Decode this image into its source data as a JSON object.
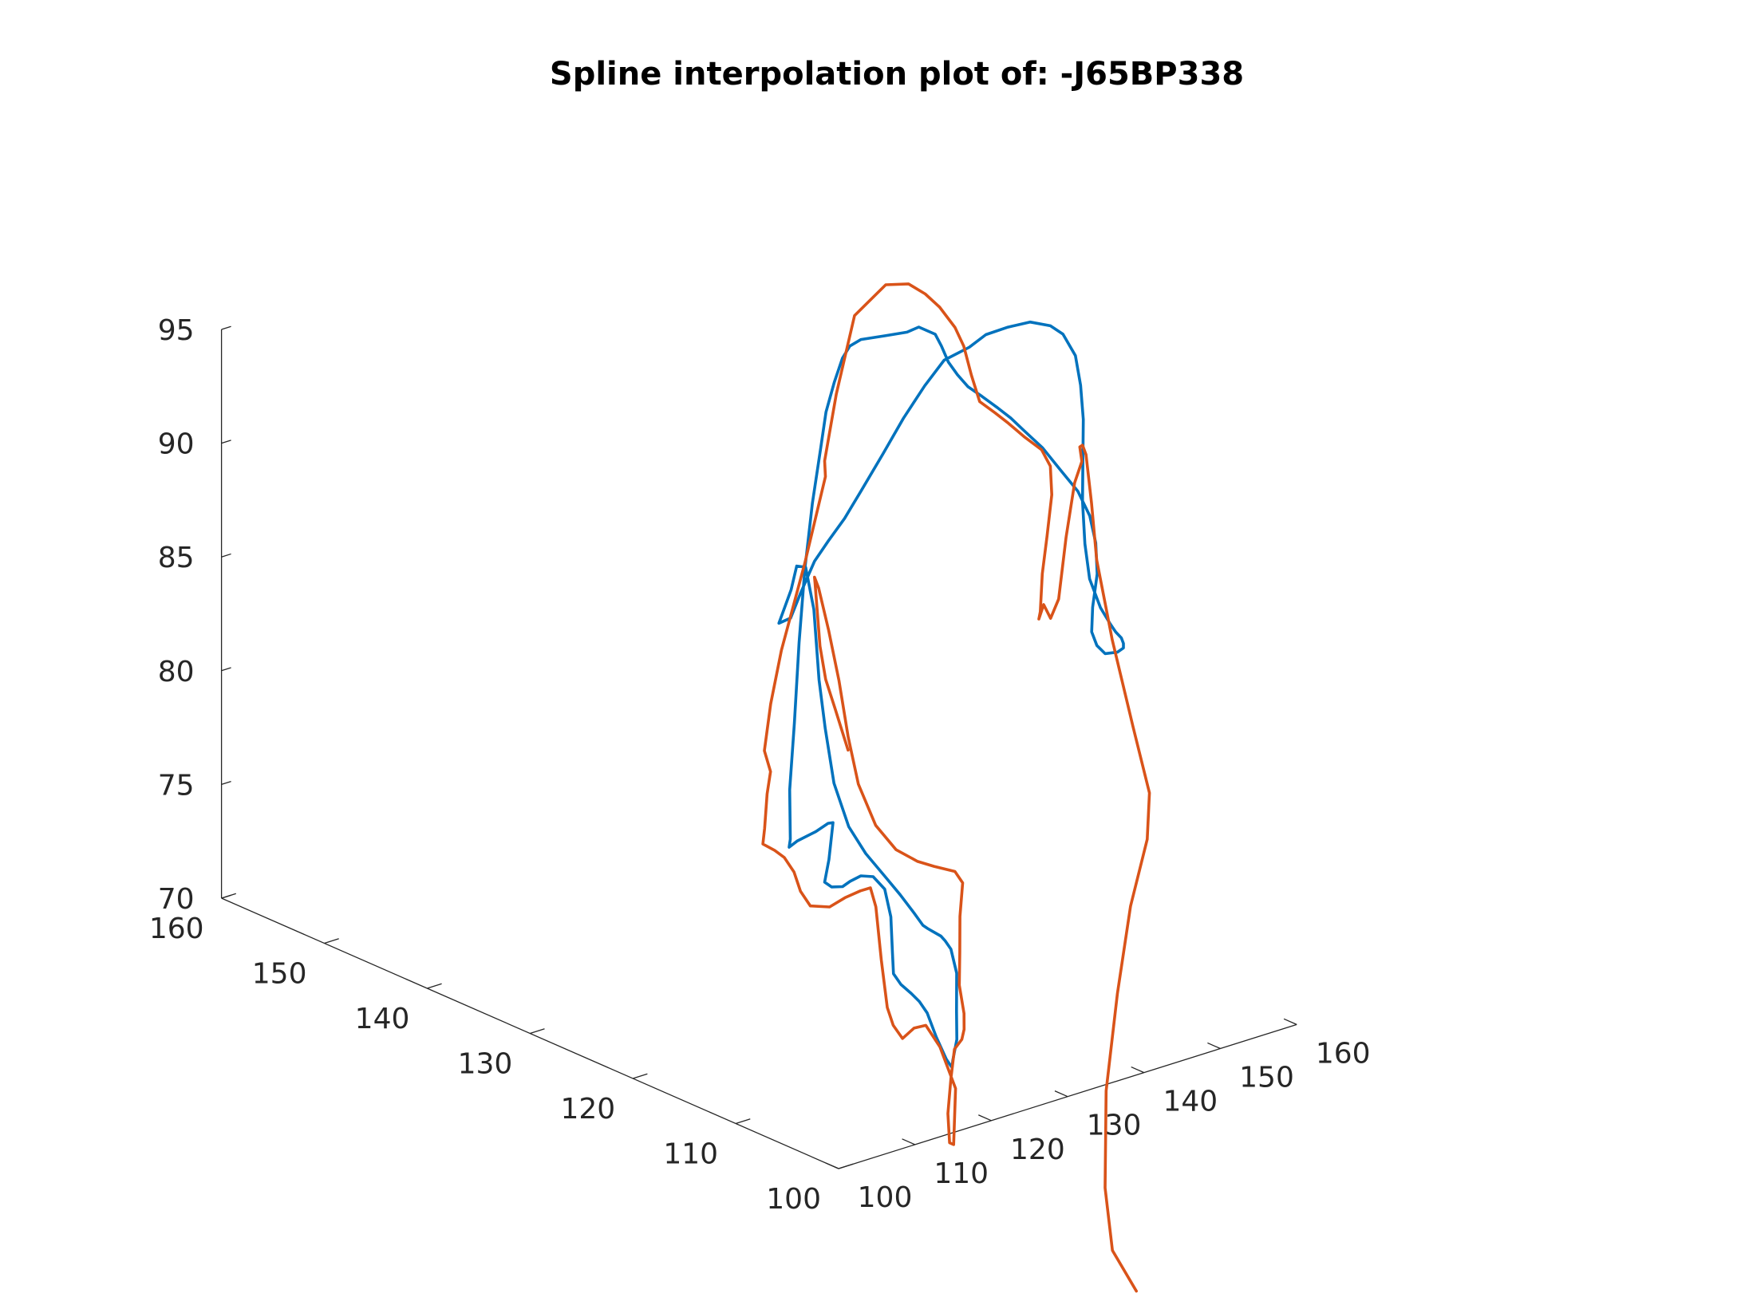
{
  "title": "Spline interpolation plot of: -J65BP338",
  "chart_data": {
    "type": "line",
    "dimension": "3d",
    "title": "Spline interpolation plot of: -J65BP338",
    "xlabel": "",
    "ylabel": "",
    "zlabel": "",
    "xlim": [
      100,
      160
    ],
    "ylim": [
      100,
      160
    ],
    "zlim": [
      70,
      95
    ],
    "x_ticks": [
      "100",
      "110",
      "120",
      "130",
      "140",
      "150",
      "160"
    ],
    "y_ticks": [
      "100",
      "110",
      "120",
      "130",
      "140",
      "150",
      "160"
    ],
    "z_ticks": [
      "70",
      "75",
      "80",
      "85",
      "90",
      "95"
    ],
    "grid": false,
    "legend": "none",
    "colors": [
      "#0072BD",
      "#D95319"
    ],
    "series": [
      {
        "color": "#0072BD",
        "points": [
          [
            136.9,
            133.2,
            83.5
          ],
          [
            138.5,
            133.2,
            84.8
          ],
          [
            139.5,
            133.4,
            85.7
          ],
          [
            140.0,
            132.9,
            85.7
          ],
          [
            140.0,
            132.1,
            84.0
          ],
          [
            140.0,
            131.6,
            81.0
          ],
          [
            140.0,
            131.0,
            79.0
          ],
          [
            139.4,
            129.7,
            76.9
          ],
          [
            138.5,
            127.6,
            75.5
          ],
          [
            137.9,
            125.5,
            74.8
          ],
          [
            137.6,
            123.3,
            74.2
          ],
          [
            137.3,
            121.7,
            73.8
          ],
          [
            136.8,
            120.0,
            73.4
          ],
          [
            136.1,
            118.6,
            73.2
          ],
          [
            135.5,
            117.7,
            73.3
          ],
          [
            134.6,
            116.6,
            73.5
          ],
          [
            134.0,
            115.3,
            73.6
          ],
          [
            133.5,
            114.5,
            73.6
          ],
          [
            132.9,
            113.5,
            73.5
          ],
          [
            132.3,
            112.5,
            72.7
          ],
          [
            131.2,
            111.7,
            71.3
          ],
          [
            130.3,
            111.0,
            70.3
          ],
          [
            129.1,
            110.5,
            69.6
          ],
          [
            128.6,
            110.2,
            69.4
          ],
          [
            128.4,
            110.6,
            69.7
          ],
          [
            128.4,
            111.6,
            70.5
          ],
          [
            128.3,
            112.4,
            71.4
          ],
          [
            128.1,
            113.0,
            71.8
          ],
          [
            128.1,
            113.8,
            72.0
          ],
          [
            128.1,
            114.8,
            72.2
          ],
          [
            128.2,
            115.6,
            72.5
          ],
          [
            128.2,
            115.7,
            73.4
          ],
          [
            128.4,
            116.0,
            74.9
          ],
          [
            128.4,
            116.6,
            76.0
          ],
          [
            128.1,
            117.5,
            76.4
          ],
          [
            127.7,
            118.4,
            76.3
          ],
          [
            127.5,
            119.3,
            75.9
          ],
          [
            127.6,
            120.1,
            75.5
          ],
          [
            127.5,
            121.1,
            75.3
          ],
          [
            127.4,
            121.7,
            75.4
          ],
          [
            128.1,
            121.8,
            76.3
          ],
          [
            128.9,
            122.0,
            77.8
          ],
          [
            128.8,
            122.4,
            77.7
          ],
          [
            128.4,
            123.3,
            77.2
          ],
          [
            128.1,
            124.9,
            76.5
          ],
          [
            128.0,
            125.6,
            76.1
          ],
          [
            128.7,
            126.0,
            76.3
          ],
          [
            130.5,
            127.4,
            78.0
          ],
          [
            132.6,
            128.5,
            80.5
          ],
          [
            134.7,
            129.6,
            83.6
          ],
          [
            136.8,
            130.6,
            86.4
          ],
          [
            139.0,
            131.5,
            88.9
          ],
          [
            141.3,
            132.4,
            90.9
          ],
          [
            142.8,
            133.0,
            92.2
          ],
          [
            144.7,
            133.6,
            93.2
          ],
          [
            146.3,
            134.0,
            94.0
          ],
          [
            147.4,
            134.1,
            94.4
          ],
          [
            148.6,
            133.9,
            94.6
          ],
          [
            150.7,
            133.1,
            94.7
          ],
          [
            152.2,
            132.1,
            94.9
          ],
          [
            152.8,
            131.4,
            95.2
          ],
          [
            153.2,
            130.1,
            95.1
          ],
          [
            152.8,
            129.2,
            94.8
          ],
          [
            152.1,
            128.0,
            94.4
          ],
          [
            151.4,
            126.6,
            94.2
          ],
          [
            150.9,
            125.2,
            94.0
          ],
          [
            150.7,
            123.7,
            93.9
          ],
          [
            150.7,
            122.2,
            93.7
          ],
          [
            150.7,
            120.9,
            93.5
          ],
          [
            150.7,
            119.6,
            93.2
          ],
          [
            150.7,
            117.8,
            92.8
          ],
          [
            150.6,
            116.0,
            92.2
          ],
          [
            150.6,
            114.3,
            91.6
          ],
          [
            150.0,
            112.7,
            90.9
          ],
          [
            148.9,
            111.3,
            90.1
          ],
          [
            147.6,
            110.2,
            89.1
          ],
          [
            146.2,
            109.6,
            87.9
          ],
          [
            145.4,
            109.1,
            87.0
          ],
          [
            145.0,
            108.3,
            86.6
          ],
          [
            145.0,
            107.5,
            86.4
          ],
          [
            145.4,
            107.0,
            86.5
          ],
          [
            145.8,
            106.9,
            86.5
          ],
          [
            146.6,
            106.9,
            86.6
          ],
          [
            147.0,
            107.2,
            86.7
          ],
          [
            147.4,
            107.7,
            86.8
          ],
          [
            147.6,
            108.4,
            86.9
          ],
          [
            147.9,
            109.2,
            87.1
          ],
          [
            148.3,
            110.4,
            87.5
          ],
          [
            148.9,
            111.9,
            88.4
          ],
          [
            149.9,
            113.1,
            89.6
          ],
          [
            151.2,
            114.3,
            91.1
          ],
          [
            152.6,
            115.3,
            92.6
          ],
          [
            154.0,
            116.3,
            94.0
          ],
          [
            155.4,
            117.6,
            95.1
          ],
          [
            156.6,
            119.0,
            96.0
          ],
          [
            157.4,
            120.8,
            96.5
          ],
          [
            157.9,
            122.4,
            96.5
          ],
          [
            157.8,
            124.3,
            96.3
          ],
          [
            157.2,
            126.0,
            95.8
          ],
          [
            156.2,
            127.4,
            95.3
          ],
          [
            155.5,
            128.5,
            94.6
          ],
          [
            154.5,
            130.2,
            93.8
          ],
          [
            153.3,
            131.2,
            92.6
          ],
          [
            151.6,
            132.0,
            91.2
          ],
          [
            149.7,
            132.6,
            89.7
          ],
          [
            147.5,
            133.1,
            88.2
          ],
          [
            145.5,
            133.2,
            87.2
          ],
          [
            143.5,
            133.3,
            86.4
          ],
          [
            141.7,
            133.3,
            85.7
          ],
          [
            139.7,
            133.2,
            84.5
          ],
          [
            138.3,
            133.1,
            83.6
          ],
          [
            136.9,
            133.2,
            83.5
          ]
        ]
      },
      {
        "color": "#D95319",
        "points": [
          [
            139.5,
            128.4,
            78.6
          ],
          [
            140.0,
            130.0,
            80.0
          ],
          [
            140.2,
            131.1,
            81.1
          ],
          [
            140.4,
            131.8,
            82.4
          ],
          [
            141.5,
            133.1,
            84.8
          ],
          [
            141.7,
            133.3,
            85.0
          ],
          [
            141.7,
            132.9,
            84.6
          ],
          [
            141.4,
            131.7,
            83.0
          ],
          [
            141.0,
            130.4,
            81.1
          ],
          [
            140.3,
            129.0,
            79.0
          ],
          [
            139.5,
            127.4,
            77.3
          ],
          [
            138.8,
            125.2,
            76.0
          ],
          [
            138.5,
            123.0,
            75.4
          ],
          [
            138.5,
            120.9,
            75.3
          ],
          [
            138.5,
            119.3,
            75.4
          ],
          [
            138.4,
            117.2,
            75.6
          ],
          [
            137.8,
            116.0,
            75.4
          ],
          [
            136.5,
            115.3,
            74.2
          ],
          [
            135.4,
            114.5,
            72.9
          ],
          [
            134.4,
            113.8,
            71.7
          ],
          [
            133.4,
            112.6,
            70.8
          ],
          [
            132.6,
            112.0,
            70.3
          ],
          [
            131.9,
            111.7,
            70.0
          ],
          [
            131.2,
            111.9,
            69.6
          ],
          [
            130.2,
            111.5,
            68.5
          ],
          [
            129.0,
            110.9,
            67.2
          ],
          [
            128.0,
            110.0,
            66.2
          ],
          [
            128.0,
            109.6,
            66.2
          ],
          [
            128.5,
            109.9,
            67.0
          ],
          [
            129.6,
            110.6,
            68.3
          ],
          [
            129.7,
            112.2,
            69.8
          ],
          [
            129.6,
            113.5,
            70.5
          ],
          [
            129.0,
            114.2,
            70.3
          ],
          [
            128.3,
            114.8,
            69.8
          ],
          [
            128.3,
            115.7,
            70.2
          ],
          [
            128.6,
            116.5,
            70.8
          ],
          [
            129.3,
            117.6,
            72.6
          ],
          [
            130.2,
            118.8,
            74.6
          ],
          [
            130.7,
            119.7,
            75.2
          ],
          [
            130.6,
            120.6,
            74.9
          ],
          [
            130.2,
            121.8,
            74.4
          ],
          [
            129.8,
            123.0,
            73.8
          ],
          [
            129.7,
            124.8,
            73.5
          ],
          [
            130.3,
            126.2,
            73.8
          ],
          [
            130.8,
            127.2,
            74.4
          ],
          [
            131.0,
            128.3,
            74.8
          ],
          [
            131.1,
            129.3,
            74.9
          ],
          [
            131.3,
            130.6,
            74.9
          ],
          [
            132.2,
            131.1,
            75.4
          ],
          [
            133.6,
            131.9,
            76.6
          ],
          [
            135.0,
            132.6,
            77.3
          ],
          [
            135.0,
            133.2,
            78.1
          ],
          [
            136.5,
            133.7,
            79.9
          ],
          [
            138.3,
            134.0,
            82.0
          ],
          [
            141.2,
            133.9,
            85.5
          ],
          [
            143.8,
            133.8,
            89.1
          ],
          [
            144.1,
            134.1,
            89.7
          ],
          [
            146.3,
            134.6,
            92.3
          ],
          [
            149.1,
            134.9,
            95.4
          ],
          [
            151.3,
            133.5,
            96.8
          ],
          [
            152.4,
            132.1,
            97.0
          ],
          [
            153.1,
            131.0,
            96.7
          ],
          [
            153.5,
            129.9,
            96.3
          ],
          [
            153.5,
            128.4,
            95.7
          ],
          [
            152.9,
            127.1,
            95.2
          ],
          [
            152.0,
            125.7,
            94.3
          ],
          [
            151.2,
            124.3,
            93.5
          ],
          [
            151.2,
            122.8,
            93.3
          ],
          [
            151.2,
            121.5,
            93.1
          ],
          [
            151.2,
            119.9,
            92.8
          ],
          [
            151.1,
            118.2,
            92.6
          ],
          [
            150.5,
            116.9,
            92.2
          ],
          [
            149.2,
            115.8,
            91.3
          ],
          [
            147.5,
            115.0,
            89.8
          ],
          [
            145.8,
            114.2,
            88.5
          ],
          [
            144.2,
            113.2,
            87.2
          ],
          [
            143.6,
            112.9,
            87.0
          ],
          [
            144.5,
            113.1,
            87.5
          ],
          [
            145.0,
            112.8,
            86.9
          ],
          [
            147.0,
            113.5,
            87.4
          ],
          [
            150.4,
            115.3,
            89.4
          ],
          [
            153.4,
            116.7,
            91.2
          ],
          [
            155.3,
            117.4,
            91.8
          ],
          [
            156.1,
            118.2,
            92.2
          ],
          [
            157.4,
            118.9,
            92.0
          ],
          [
            158.0,
            119.0,
            91.5
          ],
          [
            157.5,
            118.1,
            89.6
          ],
          [
            156.7,
            117.0,
            87.4
          ],
          [
            156.3,
            115.2,
            84.3
          ],
          [
            156.2,
            113.1,
            80.9
          ],
          [
            156.2,
            111.5,
            78.3
          ],
          [
            154.7,
            110.6,
            76.6
          ],
          [
            151.7,
            110.0,
            74.1
          ],
          [
            148.5,
            108.9,
            70.8
          ],
          [
            145.0,
            107.4,
            67.2
          ],
          [
            141.5,
            104.9,
            63.8
          ],
          [
            139.5,
            102.7,
            61.7
          ],
          [
            139.0,
            100.0,
            60.5
          ]
        ]
      }
    ]
  }
}
